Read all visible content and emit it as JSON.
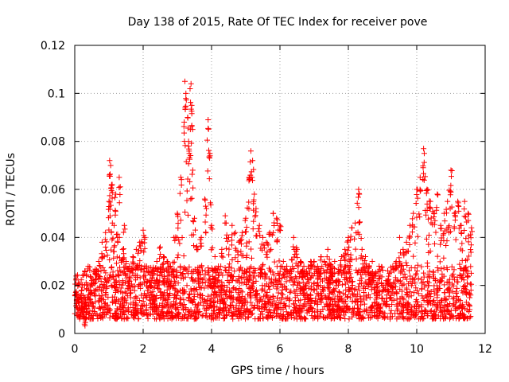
{
  "chart_data": {
    "type": "scatter",
    "title": "Day 138 of 2015, Rate Of TEC Index for receiver pove",
    "xlabel": "GPS time / hours",
    "ylabel": "ROTI / TECUs",
    "xlim": [
      0,
      12
    ],
    "ylim": [
      0,
      0.12
    ],
    "xticks": [
      0,
      2,
      4,
      6,
      8,
      10,
      12
    ],
    "xtick_labels": [
      "0",
      "2",
      "4",
      "6",
      "8",
      "10",
      "12"
    ],
    "yticks": [
      0,
      0.02,
      0.04,
      0.06,
      0.08,
      0.1,
      0.12
    ],
    "ytick_labels": [
      "0",
      "0.02",
      "0.04",
      "0.06",
      "0.08",
      "0.1",
      "0.12"
    ],
    "grid": true,
    "marker": "+",
    "marker_color": "#ff0000",
    "x_data_range": [
      0,
      11.6
    ],
    "series": [
      {
        "name": "ROTI",
        "x": [
          0.1,
          0.2,
          0.3,
          0.4,
          0.5,
          0.6,
          0.7,
          0.8,
          0.9,
          1.0,
          1.02,
          1.05,
          1.08,
          1.1,
          1.15,
          1.2,
          1.25,
          1.3,
          1.4,
          1.45,
          1.5,
          1.6,
          1.7,
          1.8,
          1.9,
          2.0,
          2.05,
          2.1,
          2.2,
          2.3,
          2.4,
          2.5,
          2.6,
          2.7,
          2.8,
          2.9,
          3.0,
          3.1,
          3.2,
          3.22,
          3.25,
          3.3,
          3.35,
          3.38,
          3.4,
          3.42,
          3.45,
          3.5,
          3.6,
          3.7,
          3.8,
          3.85,
          3.9,
          3.95,
          4.0,
          4.1,
          4.2,
          4.3,
          4.4,
          4.5,
          4.6,
          4.7,
          4.8,
          4.9,
          5.0,
          5.1,
          5.15,
          5.2,
          5.25,
          5.3,
          5.4,
          5.5,
          5.6,
          5.7,
          5.8,
          5.9,
          6.0,
          6.1,
          6.2,
          6.3,
          6.4,
          6.5,
          6.6,
          6.7,
          6.8,
          6.9,
          7.0,
          7.1,
          7.2,
          7.3,
          7.4,
          7.5,
          7.6,
          7.7,
          7.8,
          7.9,
          8.0,
          8.1,
          8.2,
          8.3,
          8.32,
          8.4,
          8.5,
          8.6,
          8.7,
          8.8,
          8.9,
          9.0,
          9.1,
          9.2,
          9.3,
          9.4,
          9.5,
          9.6,
          9.7,
          9.8,
          9.9,
          10.0,
          10.1,
          10.2,
          10.22,
          10.3,
          10.4,
          10.5,
          10.6,
          10.7,
          10.8,
          10.9,
          11.0,
          11.1,
          11.2,
          11.3,
          11.4,
          11.5,
          11.6
        ],
        "y": [
          0.021,
          0.018,
          0.015,
          0.016,
          0.022,
          0.025,
          0.03,
          0.038,
          0.042,
          0.055,
          0.072,
          0.07,
          0.062,
          0.046,
          0.045,
          0.058,
          0.04,
          0.065,
          0.035,
          0.045,
          0.03,
          0.028,
          0.032,
          0.035,
          0.038,
          0.043,
          0.04,
          0.028,
          0.022,
          0.025,
          0.03,
          0.036,
          0.032,
          0.03,
          0.028,
          0.04,
          0.05,
          0.065,
          0.088,
          0.105,
          0.1,
          0.09,
          0.075,
          0.085,
          0.104,
          0.095,
          0.068,
          0.048,
          0.035,
          0.04,
          0.056,
          0.052,
          0.089,
          0.075,
          0.045,
          0.032,
          0.028,
          0.035,
          0.049,
          0.04,
          0.045,
          0.042,
          0.038,
          0.042,
          0.048,
          0.065,
          0.076,
          0.072,
          0.058,
          0.052,
          0.045,
          0.04,
          0.038,
          0.042,
          0.05,
          0.048,
          0.045,
          0.03,
          0.028,
          0.025,
          0.04,
          0.035,
          0.03,
          0.028,
          0.025,
          0.03,
          0.03,
          0.028,
          0.032,
          0.03,
          0.035,
          0.028,
          0.03,
          0.025,
          0.032,
          0.035,
          0.04,
          0.044,
          0.046,
          0.06,
          0.058,
          0.035,
          0.032,
          0.028,
          0.03,
          0.025,
          0.028,
          0.02,
          0.022,
          0.025,
          0.028,
          0.03,
          0.04,
          0.035,
          0.038,
          0.045,
          0.05,
          0.06,
          0.065,
          0.077,
          0.075,
          0.06,
          0.055,
          0.05,
          0.058,
          0.045,
          0.05,
          0.055,
          0.068,
          0.05,
          0.055,
          0.045,
          0.055,
          0.05,
          0.044
        ]
      }
    ]
  }
}
